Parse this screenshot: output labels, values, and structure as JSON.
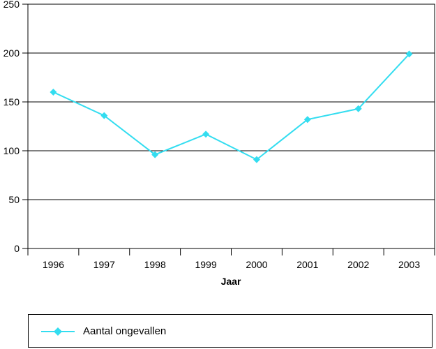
{
  "chart_data": {
    "type": "line",
    "xlabel": "Jaar",
    "ylabel": "",
    "ylim": [
      0,
      250
    ],
    "yticks": [
      0,
      50,
      100,
      150,
      200,
      250
    ],
    "categories": [
      "1996",
      "1997",
      "1998",
      "1999",
      "2000",
      "2001",
      "2002",
      "2003"
    ],
    "series": [
      {
        "name": "Aantal ongevallen",
        "color": "#33ddf0",
        "marker": "diamond",
        "values": [
          160,
          136,
          96,
          117,
          91,
          132,
          143,
          199
        ]
      }
    ],
    "grid": "horizontal",
    "legend_position": "bottom"
  }
}
